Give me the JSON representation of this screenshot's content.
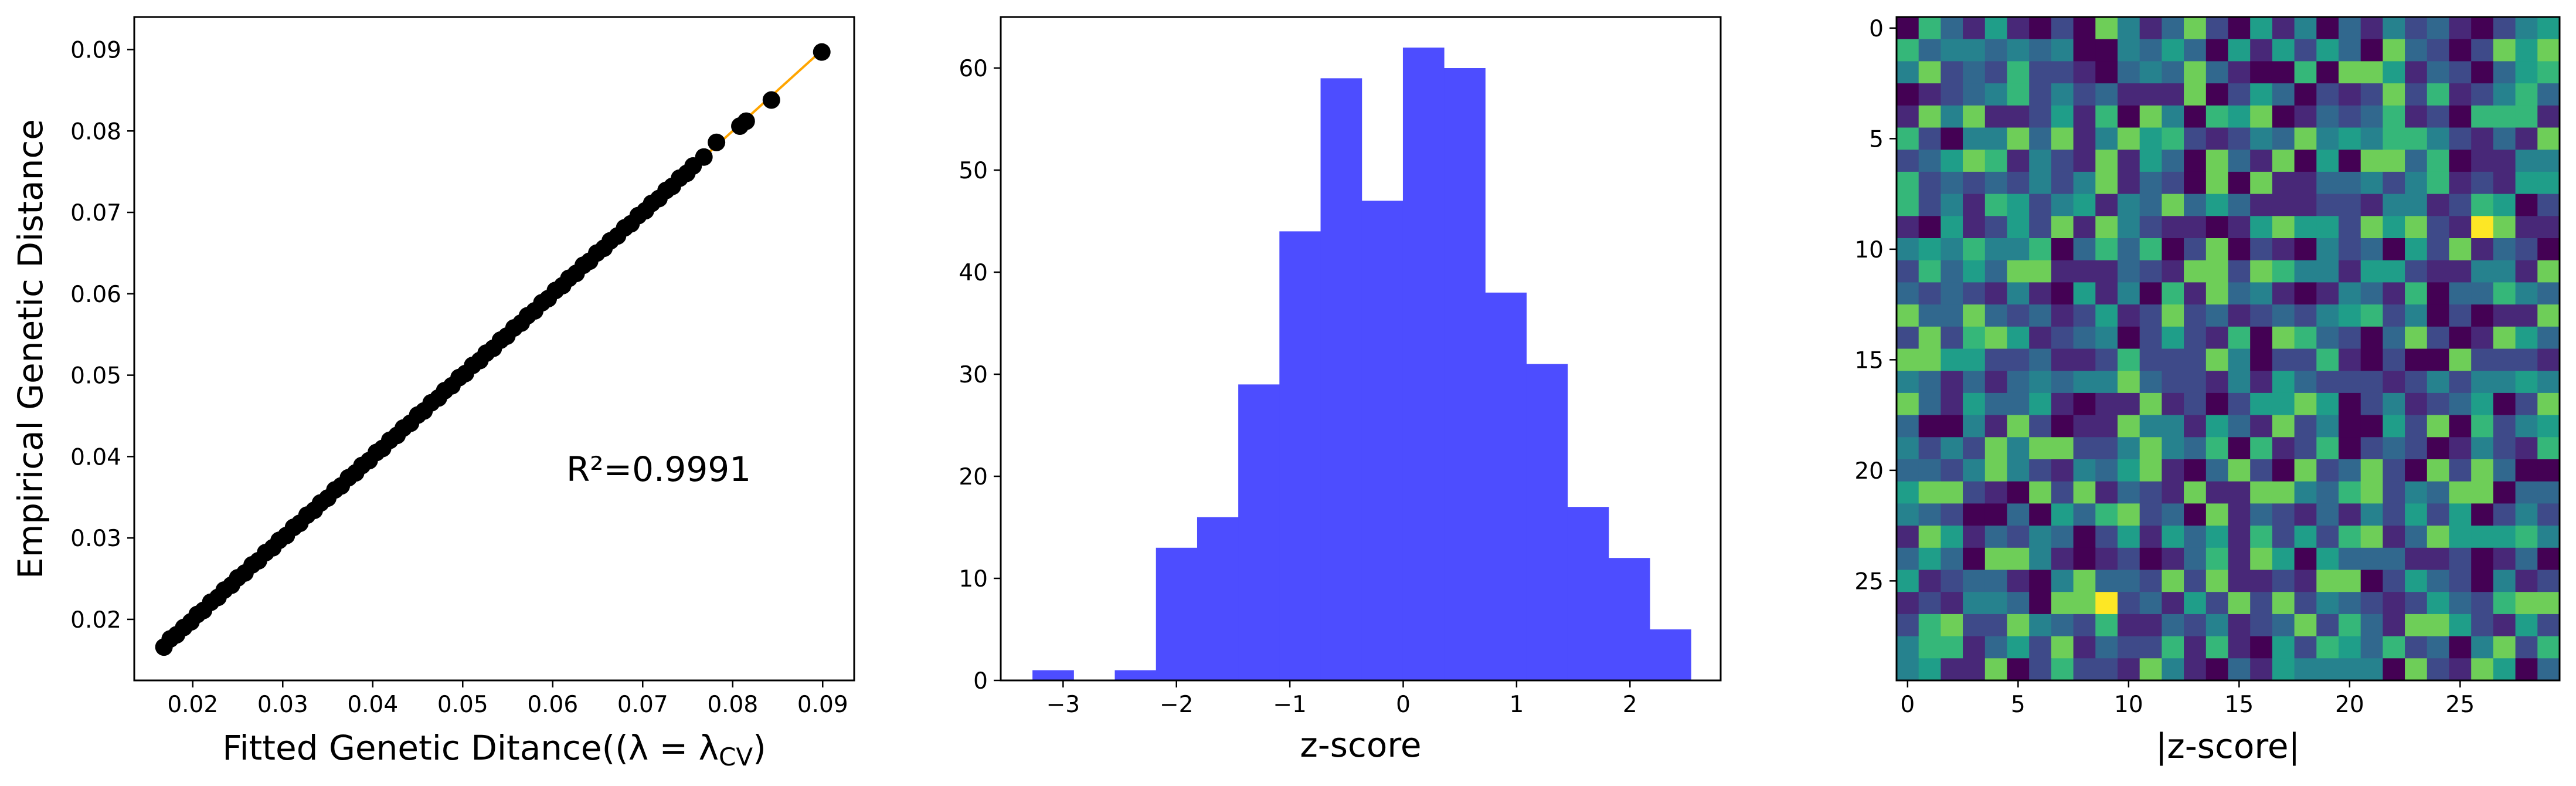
{
  "chart_data": [
    {
      "type": "scatter",
      "xlabel": "Fitted Genetic Ditance((λ = λ",
      "xlabel_sub": "CV",
      "xlabel_end": ")",
      "ylabel": "Empirical Genetic Distance",
      "annotation": "R²=0.9991",
      "xlim": [
        0.0135,
        0.0935
      ],
      "ylim": [
        0.0125,
        0.094
      ],
      "xticks": [
        0.02,
        0.03,
        0.04,
        0.05,
        0.06,
        0.07,
        0.08,
        0.09
      ],
      "yticks": [
        0.02,
        0.03,
        0.04,
        0.05,
        0.06,
        0.07,
        0.08,
        0.09
      ],
      "tick_labels": [
        "0.02",
        "0.03",
        "0.04",
        "0.05",
        "0.06",
        "0.07",
        "0.08",
        "0.09"
      ],
      "point_color": "#000000",
      "fit_line_color": "#ffa500",
      "fit_line": [
        [
          0.0167,
          0.0167
        ],
        [
          0.09,
          0.09
        ]
      ],
      "points": [
        [
          0.0168,
          0.0166
        ],
        [
          0.0175,
          0.0176
        ],
        [
          0.0182,
          0.0181
        ],
        [
          0.019,
          0.019
        ],
        [
          0.0198,
          0.0197
        ],
        [
          0.0205,
          0.0206
        ],
        [
          0.0212,
          0.0211
        ],
        [
          0.022,
          0.0221
        ],
        [
          0.0228,
          0.0227
        ],
        [
          0.0235,
          0.0236
        ],
        [
          0.0243,
          0.0242
        ],
        [
          0.025,
          0.0251
        ],
        [
          0.0258,
          0.0257
        ],
        [
          0.0266,
          0.0267
        ],
        [
          0.0273,
          0.0272
        ],
        [
          0.0281,
          0.0282
        ],
        [
          0.0289,
          0.0288
        ],
        [
          0.0296,
          0.0297
        ],
        [
          0.0304,
          0.0303
        ],
        [
          0.0312,
          0.0313
        ],
        [
          0.0319,
          0.0318
        ],
        [
          0.0327,
          0.0328
        ],
        [
          0.0335,
          0.0334
        ],
        [
          0.0342,
          0.0343
        ],
        [
          0.035,
          0.0349
        ],
        [
          0.0358,
          0.0359
        ],
        [
          0.0365,
          0.0364
        ],
        [
          0.0373,
          0.0374
        ],
        [
          0.0381,
          0.038
        ],
        [
          0.0388,
          0.0389
        ],
        [
          0.0396,
          0.0395
        ],
        [
          0.0404,
          0.0405
        ],
        [
          0.0411,
          0.041
        ],
        [
          0.0419,
          0.042
        ],
        [
          0.0427,
          0.0426
        ],
        [
          0.0434,
          0.0435
        ],
        [
          0.0442,
          0.0441
        ],
        [
          0.045,
          0.0451
        ],
        [
          0.0457,
          0.0456
        ],
        [
          0.0465,
          0.0466
        ],
        [
          0.0473,
          0.0472
        ],
        [
          0.048,
          0.0481
        ],
        [
          0.0488,
          0.0487
        ],
        [
          0.0496,
          0.0497
        ],
        [
          0.0503,
          0.0502
        ],
        [
          0.0511,
          0.0512
        ],
        [
          0.0519,
          0.0518
        ],
        [
          0.0526,
          0.0527
        ],
        [
          0.0534,
          0.0533
        ],
        [
          0.0542,
          0.0543
        ],
        [
          0.0549,
          0.0548
        ],
        [
          0.0557,
          0.0558
        ],
        [
          0.0565,
          0.0564
        ],
        [
          0.0572,
          0.0573
        ],
        [
          0.058,
          0.0579
        ],
        [
          0.0588,
          0.0589
        ],
        [
          0.0595,
          0.0594
        ],
        [
          0.0603,
          0.0604
        ],
        [
          0.0611,
          0.061
        ],
        [
          0.0618,
          0.0619
        ],
        [
          0.0626,
          0.0625
        ],
        [
          0.0634,
          0.0635
        ],
        [
          0.0641,
          0.064
        ],
        [
          0.0649,
          0.065
        ],
        [
          0.0657,
          0.0656
        ],
        [
          0.0664,
          0.0665
        ],
        [
          0.0672,
          0.0671
        ],
        [
          0.068,
          0.0681
        ],
        [
          0.0687,
          0.0686
        ],
        [
          0.0695,
          0.0696
        ],
        [
          0.0703,
          0.0702
        ],
        [
          0.071,
          0.0711
        ],
        [
          0.0718,
          0.0717
        ],
        [
          0.0726,
          0.0727
        ],
        [
          0.0733,
          0.0732
        ],
        [
          0.0741,
          0.0742
        ],
        [
          0.0749,
          0.0748
        ],
        [
          0.0756,
          0.0757
        ],
        [
          0.0768,
          0.0768
        ],
        [
          0.0782,
          0.0786
        ],
        [
          0.0808,
          0.0806
        ],
        [
          0.0815,
          0.0812
        ],
        [
          0.0843,
          0.0838
        ],
        [
          0.0899,
          0.0897
        ]
      ]
    },
    {
      "type": "bar",
      "subtype": "histogram",
      "xlabel": "z-score",
      "ylabel": "",
      "xlim": [
        -3.55,
        2.8
      ],
      "ylim": [
        0,
        65
      ],
      "xticks": [
        -3,
        -2,
        -1,
        0,
        1,
        2
      ],
      "xtick_labels": [
        "−3",
        "−2",
        "−1",
        "0",
        "1",
        "2"
      ],
      "yticks": [
        0,
        10,
        20,
        30,
        40,
        50,
        60
      ],
      "ytick_labels": [
        "0",
        "10",
        "20",
        "30",
        "40",
        "50",
        "60"
      ],
      "color": "#4d4dff",
      "bin_start": -3.27,
      "bin_width": 0.363,
      "counts": [
        1,
        0,
        1,
        13,
        16,
        29,
        44,
        59,
        47,
        62,
        60,
        38,
        31,
        17,
        12,
        5
      ]
    },
    {
      "type": "heatmap",
      "xlabel": "|z-score|",
      "ylabel": "",
      "colormap": "viridis",
      "xticks": [
        0,
        5,
        10,
        15,
        20,
        25
      ],
      "yticks": [
        0,
        5,
        10,
        15,
        20,
        25
      ],
      "tick_labels": [
        "0",
        "5",
        "10",
        "15",
        "20",
        "25"
      ],
      "rows": 30,
      "cols": 30,
      "highlights": [
        {
          "row": 9,
          "col": 26,
          "value": 1.0
        },
        {
          "row": 26,
          "col": 9,
          "value": 1.0
        }
      ]
    }
  ]
}
